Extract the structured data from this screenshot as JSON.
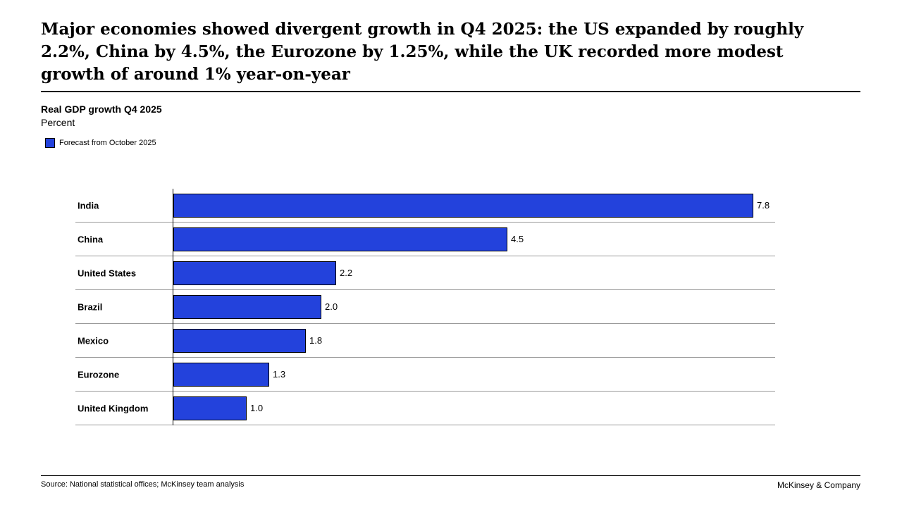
{
  "header": {
    "title_lines": [
      "Major economies showed divergent growth in Q4 2025: the US expanded by roughly",
      "2.2%, China by 4.5%, the Eurozone by 1.25%, while the UK recorded more modest",
      "growth of around 1% year-on-year"
    ]
  },
  "chart_header": {
    "title": "Real GDP growth Q4 2025",
    "subtitle": "Percent"
  },
  "legend": {
    "label": "Forecast from October 2025"
  },
  "chart_data": {
    "type": "bar",
    "orientation": "horizontal",
    "title": "Real GDP growth Q4 2025",
    "unit_label": "Percent",
    "legend": [
      "Forecast from October 2025"
    ],
    "categories": [
      "India",
      "China",
      "United States",
      "Brazil",
      "Mexico",
      "Eurozone",
      "United Kingdom"
    ],
    "values": [
      7.8,
      4.5,
      2.2,
      2.0,
      1.8,
      1.3,
      1.0
    ],
    "value_labels": [
      "7.8",
      "4.5",
      "2.2",
      "2.0",
      "1.8",
      "1.3",
      "1.0"
    ],
    "xlim": [
      0,
      8.1
    ],
    "grid": "row-dividers",
    "legend_position": "top-left",
    "bar_color": "#2342DC"
  },
  "footer": {
    "source": "Source: National statistical offices; McKinsey team analysis",
    "brand": "McKinsey & Company"
  },
  "colors": {
    "accent_blue": "#2342DC",
    "divider_gray": "#999999",
    "text_black": "#000000"
  }
}
